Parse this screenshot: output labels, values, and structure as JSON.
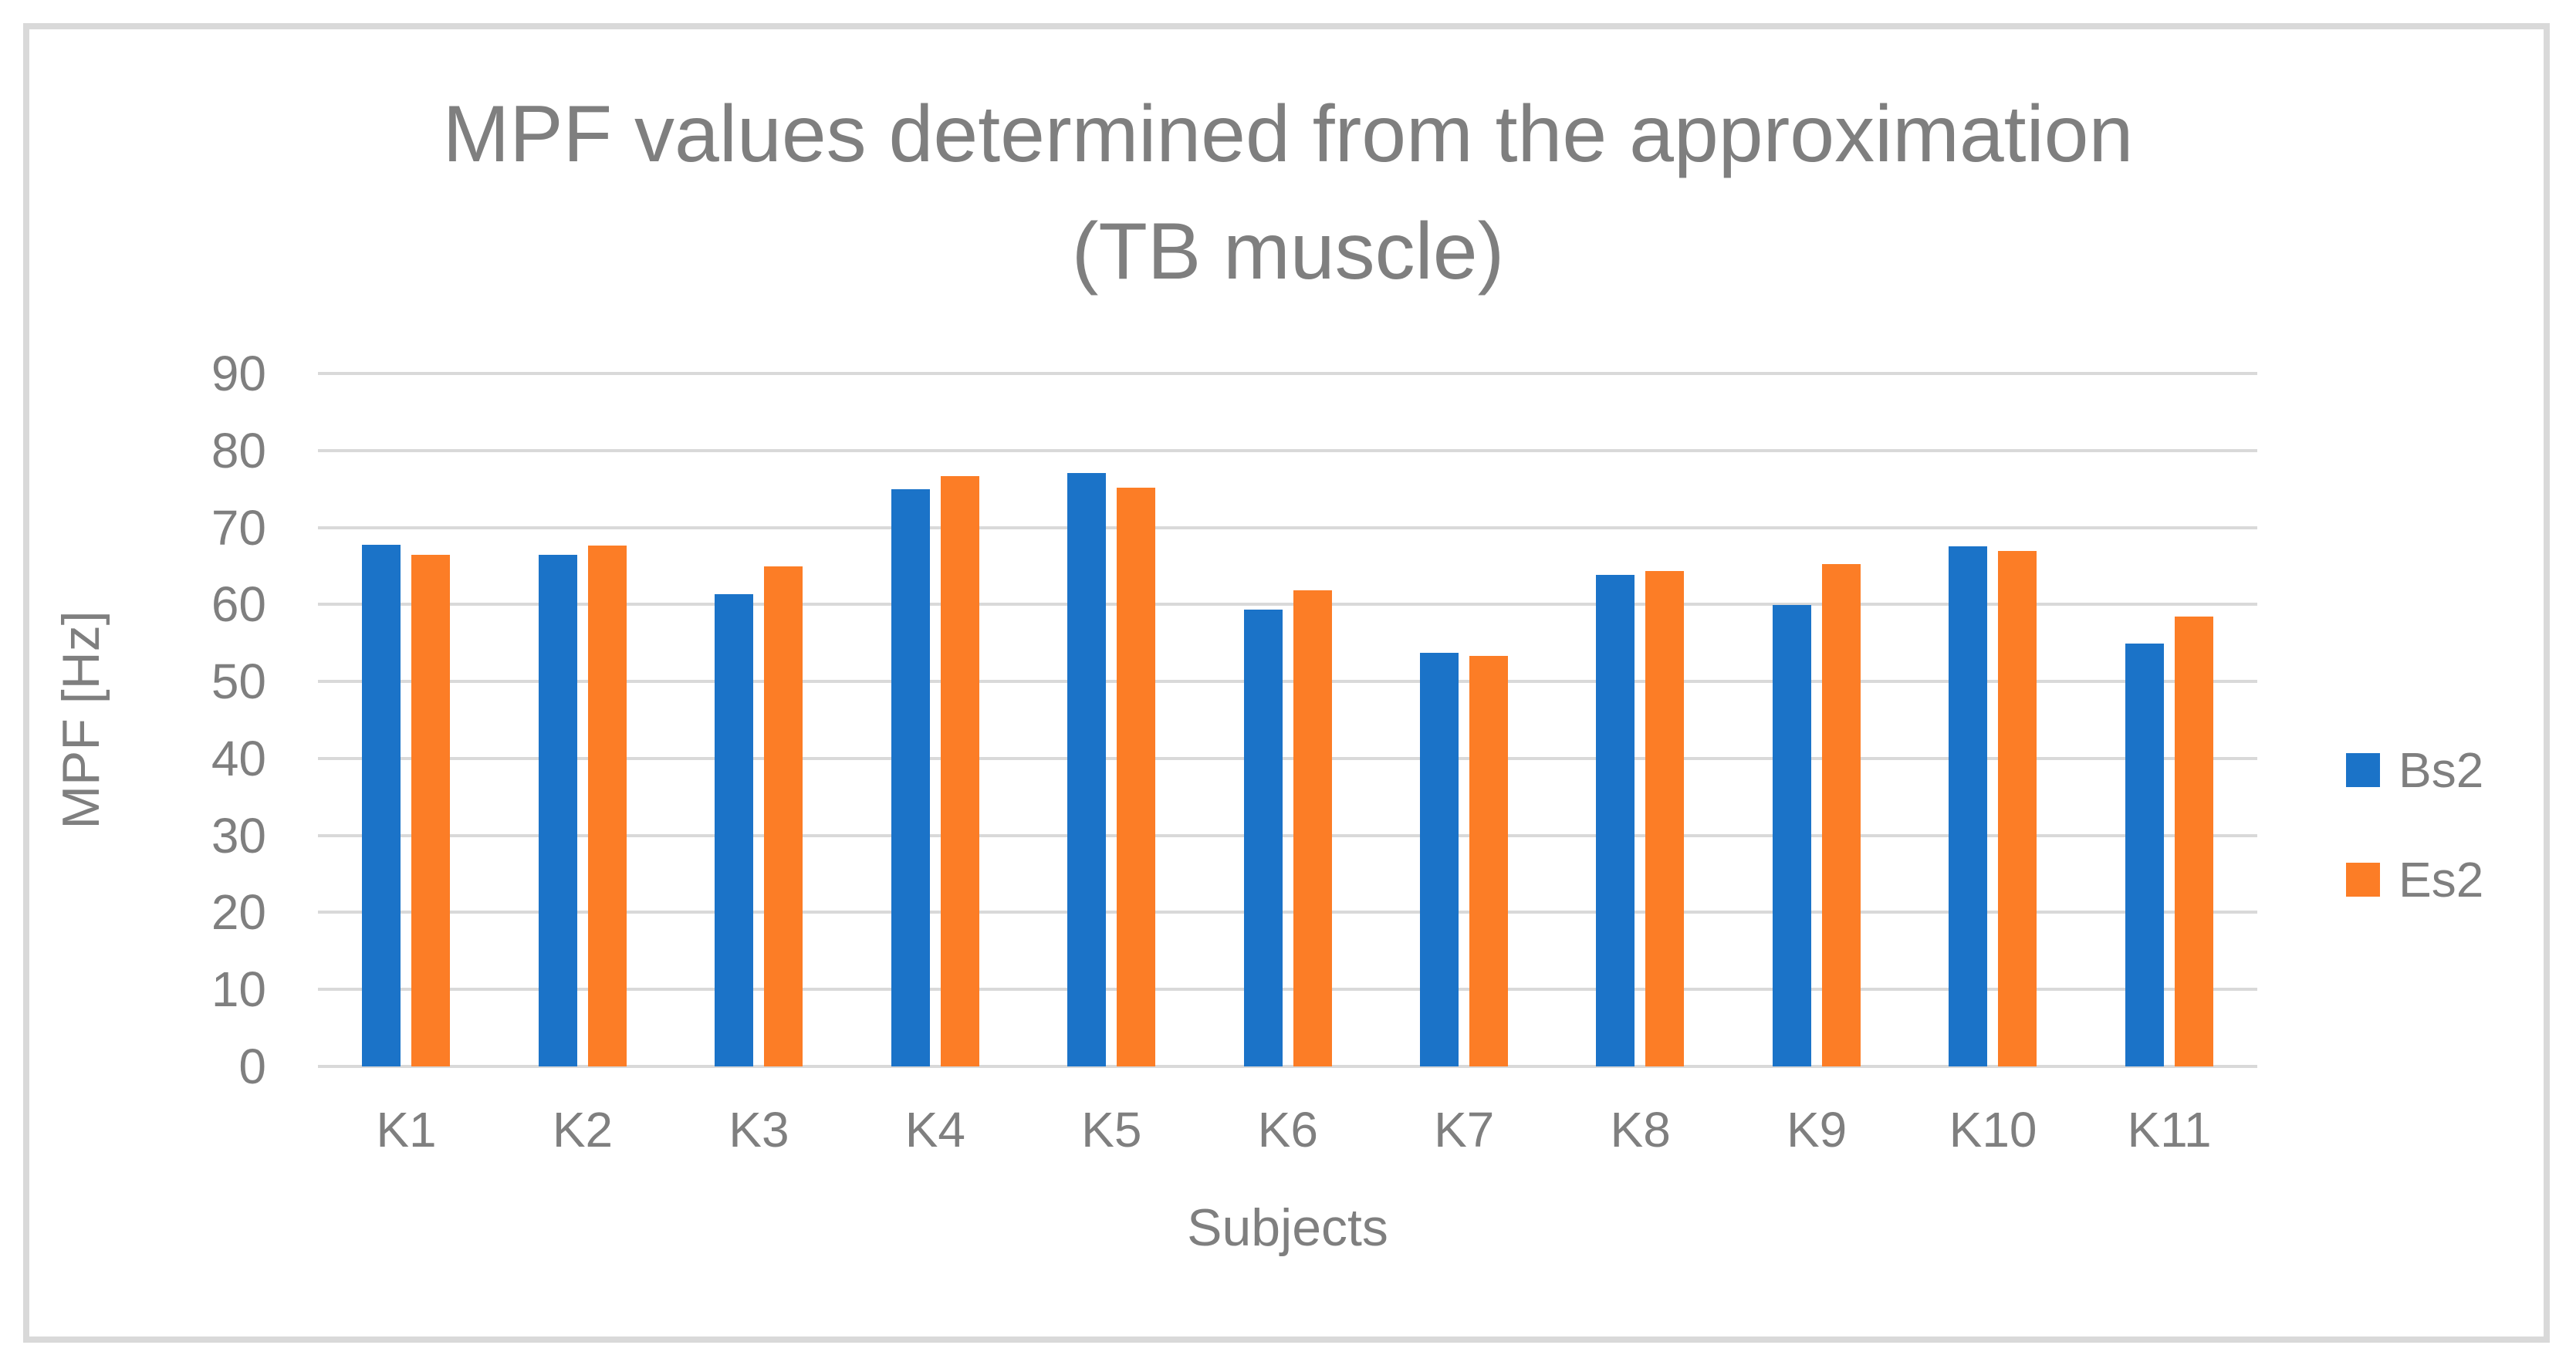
{
  "figure": {
    "title_line1": "MPF values determined from the approximation",
    "title_line2": "(TB muscle)"
  },
  "chart_data": {
    "type": "bar",
    "title": "MPF values determined from the approximation (TB muscle)",
    "categories": [
      "K1",
      "K2",
      "K3",
      "K4",
      "K5",
      "K6",
      "K7",
      "K8",
      "K9",
      "K10",
      "K11"
    ],
    "series": [
      {
        "name": "Bs2",
        "color": "#1B73C8",
        "values": [
          67.8,
          66.4,
          61.3,
          75.0,
          77.1,
          59.3,
          53.7,
          63.8,
          59.9,
          67.6,
          54.9
        ]
      },
      {
        "name": "Es2",
        "color": "#FC7D26",
        "values": [
          66.4,
          67.7,
          64.9,
          76.7,
          75.2,
          61.8,
          53.3,
          64.3,
          65.2,
          67.0,
          58.4
        ]
      }
    ],
    "xlabel": "Subjects",
    "ylabel": "MPF [Hz]",
    "ylim": [
      0,
      90
    ],
    "yticks": [
      0,
      10,
      20,
      30,
      40,
      50,
      60,
      70,
      80,
      90
    ],
    "grid": true,
    "legend_position": "right",
    "colors": {
      "text_gray": "#7F7F7F",
      "gridline_gray": "#D9D9D9",
      "background": "#FFFFFF"
    }
  }
}
